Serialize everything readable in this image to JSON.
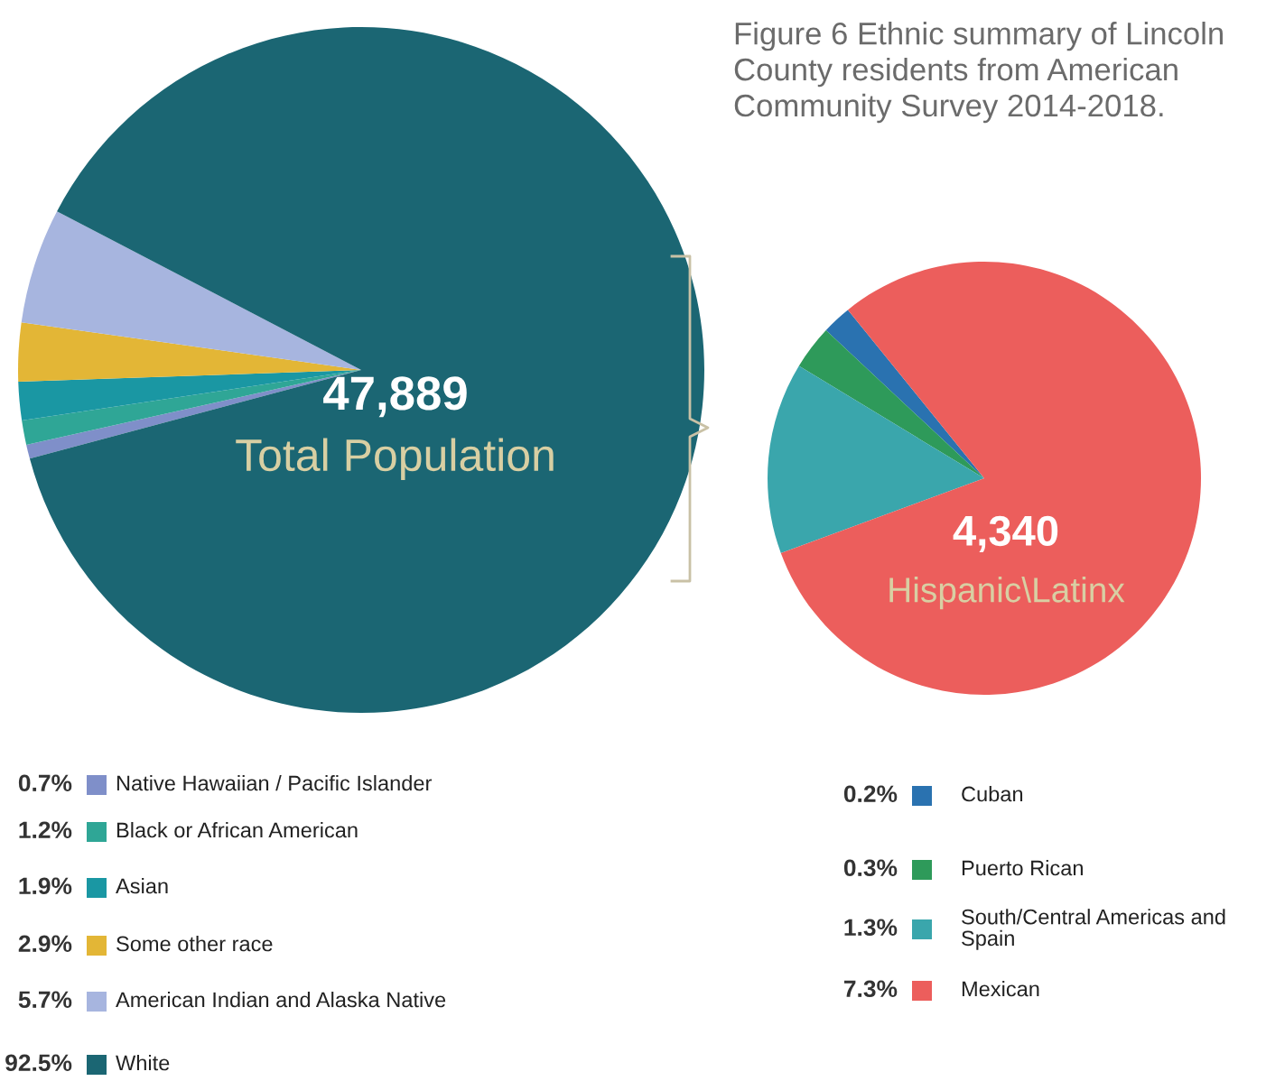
{
  "chart_data": [
    {
      "type": "pie",
      "title": "Figure 6 Ethnic summary of Lincoln County residents from American Community Survey 2014-2018.",
      "annotations": [
        "47,889",
        "Total Population"
      ],
      "legend": "bottom",
      "categories": [
        "Native Hawaiian / Pacific Islander",
        "Black or African American",
        "Asian",
        "Some other race",
        "American Indian and Alaska Native",
        "White"
      ],
      "values": [
        0.7,
        1.2,
        1.9,
        2.9,
        5.7,
        92.5
      ],
      "value_labels": [
        "0.7%",
        "1.2%",
        "1.9%",
        "2.9%",
        "5.7%",
        "92.5%"
      ],
      "colors": [
        "#7f8fc9",
        "#2fa696",
        "#1a97a3",
        "#e3b636",
        "#a7b5df",
        "#1b6673"
      ]
    },
    {
      "type": "pie",
      "annotations": [
        "4,340",
        "Hispanic\\Latinx"
      ],
      "legend": "bottom",
      "categories": [
        "Cuban",
        "Puerto Rican",
        "South/Central Americas and Spain",
        "Mexican"
      ],
      "values": [
        0.2,
        0.3,
        1.3,
        7.3
      ],
      "value_labels": [
        "0.2%",
        "0.3%",
        "1.3%",
        "7.3%"
      ],
      "colors": [
        "#2a72b0",
        "#2e9a5a",
        "#3aa6ac",
        "#ec5e5c"
      ]
    }
  ]
}
